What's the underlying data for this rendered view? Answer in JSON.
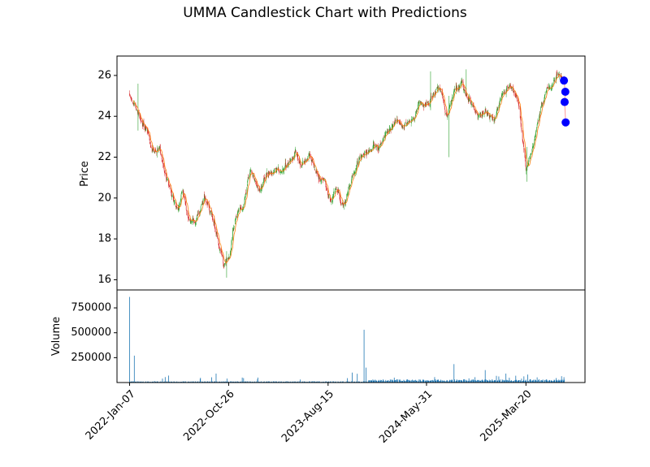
{
  "chart_data": {
    "title": "UMMA Candlestick Chart with Predictions",
    "type": "candlestick",
    "price_panel": {
      "ylabel": "Price",
      "ylim": [
        15.5,
        26.95
      ],
      "yticks": [
        16,
        18,
        20,
        22,
        24,
        26
      ],
      "ytick_labels": [
        "16",
        "18",
        "20",
        "22",
        "24",
        "26"
      ],
      "up_color": "#2ca02c",
      "down_color": "#d62728",
      "moving_average_color": "#ff7f0e",
      "prediction_color": "#0000ff",
      "prediction_line_color": "#ff9999",
      "trend": [
        [
          "2022-01-07",
          25.0
        ],
        [
          "2022-01-21",
          24.4
        ],
        [
          "2022-02-10",
          23.8
        ],
        [
          "2022-03-01",
          23.3
        ],
        [
          "2022-03-20",
          22.0
        ],
        [
          "2022-04-05",
          22.6
        ],
        [
          "2022-04-25",
          21.2
        ],
        [
          "2022-05-12",
          20.2
        ],
        [
          "2022-05-30",
          19.4
        ],
        [
          "2022-06-12",
          20.5
        ],
        [
          "2022-06-28",
          19.0
        ],
        [
          "2022-07-20",
          18.9
        ],
        [
          "2022-08-15",
          20.0
        ],
        [
          "2022-09-05",
          19.3
        ],
        [
          "2022-09-25",
          17.8
        ],
        [
          "2022-10-12",
          16.6
        ],
        [
          "2022-10-26",
          16.9
        ],
        [
          "2022-11-15",
          19.0
        ],
        [
          "2022-12-08",
          19.6
        ],
        [
          "2022-12-30",
          21.5
        ],
        [
          "2023-01-25",
          20.3
        ],
        [
          "2023-02-15",
          21.2
        ],
        [
          "2023-03-15",
          21.3
        ],
        [
          "2023-04-15",
          21.6
        ],
        [
          "2023-05-10",
          22.3
        ],
        [
          "2023-05-30",
          21.7
        ],
        [
          "2023-06-20",
          22.2
        ],
        [
          "2023-07-10",
          21.3
        ],
        [
          "2023-08-01",
          20.9
        ],
        [
          "2023-08-20",
          19.9
        ],
        [
          "2023-09-10",
          20.5
        ],
        [
          "2023-09-30",
          19.5
        ],
        [
          "2023-10-20",
          20.8
        ],
        [
          "2023-11-10",
          21.8
        ],
        [
          "2023-12-05",
          22.3
        ],
        [
          "2024-01-10",
          22.5
        ],
        [
          "2024-02-05",
          23.2
        ],
        [
          "2024-03-01",
          24.0
        ],
        [
          "2024-03-25",
          23.8
        ],
        [
          "2024-04-15",
          23.5
        ],
        [
          "2024-05-10",
          24.7
        ],
        [
          "2024-05-31",
          24.4
        ],
        [
          "2024-06-20",
          25.0
        ],
        [
          "2024-07-10",
          25.5
        ],
        [
          "2024-07-31",
          24.0
        ],
        [
          "2024-08-20",
          25.2
        ],
        [
          "2024-09-10",
          25.6
        ],
        [
          "2024-10-05",
          24.8
        ],
        [
          "2024-10-30",
          23.9
        ],
        [
          "2024-11-20",
          24.3
        ],
        [
          "2024-12-15",
          23.8
        ],
        [
          "2025-01-10",
          25.0
        ],
        [
          "2025-02-01",
          25.6
        ],
        [
          "2025-02-25",
          24.6
        ],
        [
          "2025-03-20",
          21.6
        ],
        [
          "2025-04-08",
          22.5
        ],
        [
          "2025-04-28",
          24.0
        ],
        [
          "2025-05-15",
          25.0
        ],
        [
          "2025-06-01",
          25.4
        ],
        [
          "2025-06-20",
          25.9
        ],
        [
          "2025-07-10",
          25.7
        ]
      ],
      "predictions": [
        [
          "2025-07-10",
          25.75
        ],
        [
          "2025-07-14",
          25.2
        ],
        [
          "2025-07-12",
          24.7
        ],
        [
          "2025-07-15",
          23.7
        ]
      ]
    },
    "volume_panel": {
      "ylabel": "Volume",
      "ylim": [
        0,
        930000
      ],
      "yticks": [
        250000,
        500000,
        750000
      ],
      "ytick_labels": [
        "250000",
        "500000",
        "750000"
      ],
      "bar_color": "#1f77b4",
      "spikes": [
        [
          "2022-01-07",
          860000
        ],
        [
          "2022-01-21",
          270000
        ],
        [
          "2022-03-22",
          15000
        ],
        [
          "2022-04-22",
          55000
        ],
        [
          "2022-05-02",
          70000
        ],
        [
          "2022-09-19",
          90000
        ],
        [
          "2022-12-05",
          50000
        ],
        [
          "2023-01-20",
          50000
        ],
        [
          "2023-10-25",
          100000
        ],
        [
          "2023-11-09",
          88000
        ],
        [
          "2023-11-29",
          530000
        ],
        [
          "2023-12-05",
          150000
        ],
        [
          "2024-08-20",
          185000
        ],
        [
          "2024-10-03",
          42000
        ],
        [
          "2024-11-20",
          125000
        ],
        [
          "2025-01-20",
          90000
        ],
        [
          "2025-03-15",
          115000
        ],
        [
          "2025-03-25",
          80000
        ]
      ]
    },
    "xaxis": {
      "range": [
        "2021-12-01",
        "2025-09-10"
      ],
      "tick_dates": [
        "2022-01-07",
        "2022-10-26",
        "2023-08-15",
        "2024-05-31",
        "2025-03-20"
      ],
      "tick_labels": [
        "2022-Jan-07",
        "2022-Oct-26",
        "2023-Aug-15",
        "2024-May-31",
        "2025-Mar-20"
      ],
      "data_end": "2025-07-11"
    }
  }
}
